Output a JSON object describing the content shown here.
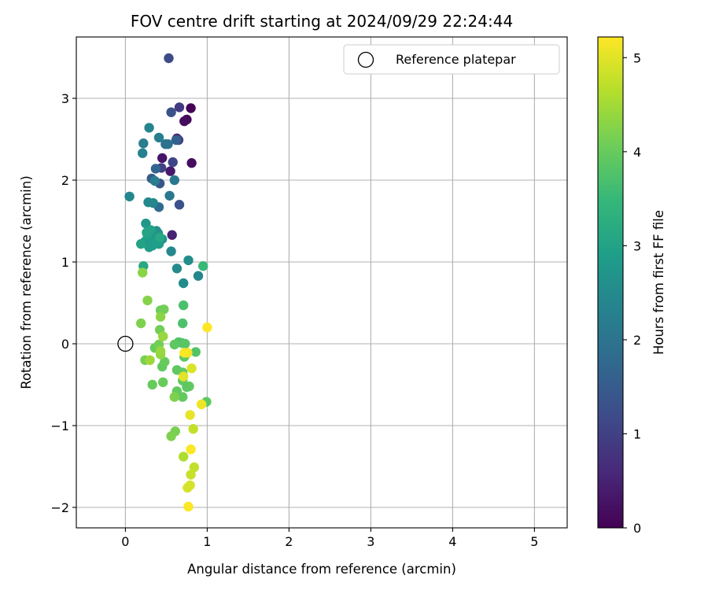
{
  "chart_data": {
    "type": "scatter",
    "title": "FOV centre drift starting at 2024/09/29 22:24:44",
    "xlabel": "Angular distance from reference (arcmin)",
    "ylabel": "Rotation from reference (arcmin)",
    "xlim": [
      -0.6,
      5.4
    ],
    "ylim": [
      -2.25,
      3.75
    ],
    "xticks": [
      0,
      1,
      2,
      3,
      4,
      5
    ],
    "yticks": [
      -2,
      -1,
      0,
      1,
      2,
      3
    ],
    "grid": true,
    "legend": {
      "placement": "upper-right",
      "entries": [
        "Reference platepar"
      ]
    },
    "colorbar": {
      "label": "Hours from first FF file",
      "range": [
        0,
        5.22
      ],
      "ticks": [
        0,
        1,
        2,
        3,
        4,
        5
      ],
      "colormap": "viridis"
    },
    "reference": {
      "x": 0,
      "y": 0,
      "name": "Reference platepar"
    },
    "points": [
      [
        0.8,
        2.88,
        0.05
      ],
      [
        0.75,
        2.74,
        0.1
      ],
      [
        0.72,
        2.72,
        0.15
      ],
      [
        0.81,
        2.21,
        0.2
      ],
      [
        0.45,
        2.27,
        0.3
      ],
      [
        0.55,
        2.11,
        0.35
      ],
      [
        0.63,
        2.51,
        0.4
      ],
      [
        0.57,
        1.33,
        0.5
      ],
      [
        0.66,
        2.89,
        0.9
      ],
      [
        0.65,
        2.49,
        1.0
      ],
      [
        0.44,
        2.15,
        1.0
      ],
      [
        0.58,
        2.22,
        1.1
      ],
      [
        0.53,
        3.49,
        1.2
      ],
      [
        0.56,
        2.83,
        1.3
      ],
      [
        0.66,
        1.7,
        1.3
      ],
      [
        0.42,
        1.96,
        1.4
      ],
      [
        0.32,
        2.02,
        1.5
      ],
      [
        0.62,
        2.49,
        1.6
      ],
      [
        0.37,
        2.14,
        1.7
      ],
      [
        0.41,
        1.67,
        1.8
      ],
      [
        0.49,
        2.44,
        1.9
      ],
      [
        0.52,
        2.44,
        2.0
      ],
      [
        0.6,
        2.0,
        2.1
      ],
      [
        0.54,
        1.81,
        2.1
      ],
      [
        0.36,
        1.99,
        2.2
      ],
      [
        0.22,
        2.45,
        2.2
      ],
      [
        0.41,
        2.52,
        2.25
      ],
      [
        0.21,
        2.33,
        2.3
      ],
      [
        0.29,
        2.64,
        2.35
      ],
      [
        0.05,
        1.8,
        2.4
      ],
      [
        0.34,
        1.72,
        2.4
      ],
      [
        0.28,
        1.73,
        2.45
      ],
      [
        0.89,
        0.83,
        2.4
      ],
      [
        0.56,
        1.13,
        2.45
      ],
      [
        0.71,
        0.74,
        2.5
      ],
      [
        0.63,
        0.92,
        2.5
      ],
      [
        0.77,
        1.02,
        2.55
      ],
      [
        0.4,
        1.35,
        2.6
      ],
      [
        0.38,
        1.38,
        2.65
      ],
      [
        0.45,
        1.28,
        2.7
      ],
      [
        0.25,
        1.47,
        2.75
      ],
      [
        0.32,
        1.31,
        2.75
      ],
      [
        0.24,
        1.25,
        2.8
      ],
      [
        0.41,
        1.22,
        2.85
      ],
      [
        0.29,
        1.18,
        2.85
      ],
      [
        0.33,
        1.2,
        2.9
      ],
      [
        0.36,
        1.24,
        2.9
      ],
      [
        0.27,
        1.33,
        2.95
      ],
      [
        0.19,
        1.22,
        3.0
      ],
      [
        0.31,
        1.39,
        3.0
      ],
      [
        0.26,
        1.36,
        3.05
      ],
      [
        0.42,
        1.3,
        3.1
      ],
      [
        0.22,
        0.95,
        3.1
      ],
      [
        0.95,
        0.95,
        3.5
      ],
      [
        0.71,
        0.47,
        3.7
      ],
      [
        0.7,
        0.25,
        3.75
      ],
      [
        0.65,
        0.02,
        3.8
      ],
      [
        0.69,
        0.01,
        3.8
      ],
      [
        0.73,
        0.0,
        3.85
      ],
      [
        0.86,
        -0.1,
        3.8
      ],
      [
        0.75,
        -0.12,
        3.85
      ],
      [
        0.6,
        -0.01,
        3.9
      ],
      [
        0.72,
        -0.16,
        3.9
      ],
      [
        0.63,
        -0.32,
        3.9
      ],
      [
        0.7,
        -0.35,
        3.95
      ],
      [
        0.7,
        -0.45,
        3.95
      ],
      [
        0.78,
        -0.52,
        3.95
      ],
      [
        0.75,
        -0.53,
        3.9
      ],
      [
        0.99,
        -0.71,
        3.9
      ],
      [
        0.7,
        -0.65,
        3.95
      ],
      [
        0.63,
        -0.58,
        3.95
      ],
      [
        0.45,
        -0.28,
        3.95
      ],
      [
        0.48,
        -0.22,
        4.0
      ],
      [
        0.46,
        -0.47,
        4.0
      ],
      [
        0.33,
        -0.5,
        4.0
      ],
      [
        0.36,
        -0.05,
        4.0
      ],
      [
        0.43,
        0.41,
        4.05
      ],
      [
        0.47,
        0.42,
        4.1
      ],
      [
        0.42,
        0.17,
        4.1
      ],
      [
        0.41,
        -0.01,
        4.1
      ],
      [
        0.24,
        -0.2,
        4.15
      ],
      [
        0.61,
        -1.07,
        4.15
      ],
      [
        0.56,
        -1.13,
        4.2
      ],
      [
        0.6,
        -0.65,
        4.2
      ],
      [
        0.19,
        0.25,
        4.2
      ],
      [
        0.27,
        0.53,
        4.25
      ],
      [
        0.21,
        0.87,
        4.3
      ],
      [
        0.43,
        0.33,
        4.3
      ],
      [
        0.43,
        -0.13,
        4.35
      ],
      [
        0.46,
        0.09,
        4.4
      ],
      [
        0.43,
        -0.09,
        4.4
      ],
      [
        0.3,
        -0.2,
        4.45
      ],
      [
        0.71,
        -1.38,
        4.6
      ],
      [
        0.83,
        -1.04,
        4.75
      ],
      [
        0.84,
        -1.51,
        4.75
      ],
      [
        0.8,
        -1.6,
        4.8
      ],
      [
        0.79,
        -1.73,
        4.9
      ],
      [
        0.76,
        -1.76,
        4.9
      ],
      [
        0.81,
        -0.3,
        4.95
      ],
      [
        0.71,
        -0.4,
        5.0
      ],
      [
        0.79,
        -0.87,
        5.05
      ],
      [
        0.93,
        -0.74,
        5.1
      ],
      [
        0.76,
        -0.11,
        5.15
      ],
      [
        0.8,
        -1.29,
        5.2
      ],
      [
        0.77,
        -1.99,
        5.2
      ],
      [
        1.0,
        0.2,
        5.22
      ],
      [
        0.72,
        -0.11,
        5.2
      ]
    ]
  }
}
